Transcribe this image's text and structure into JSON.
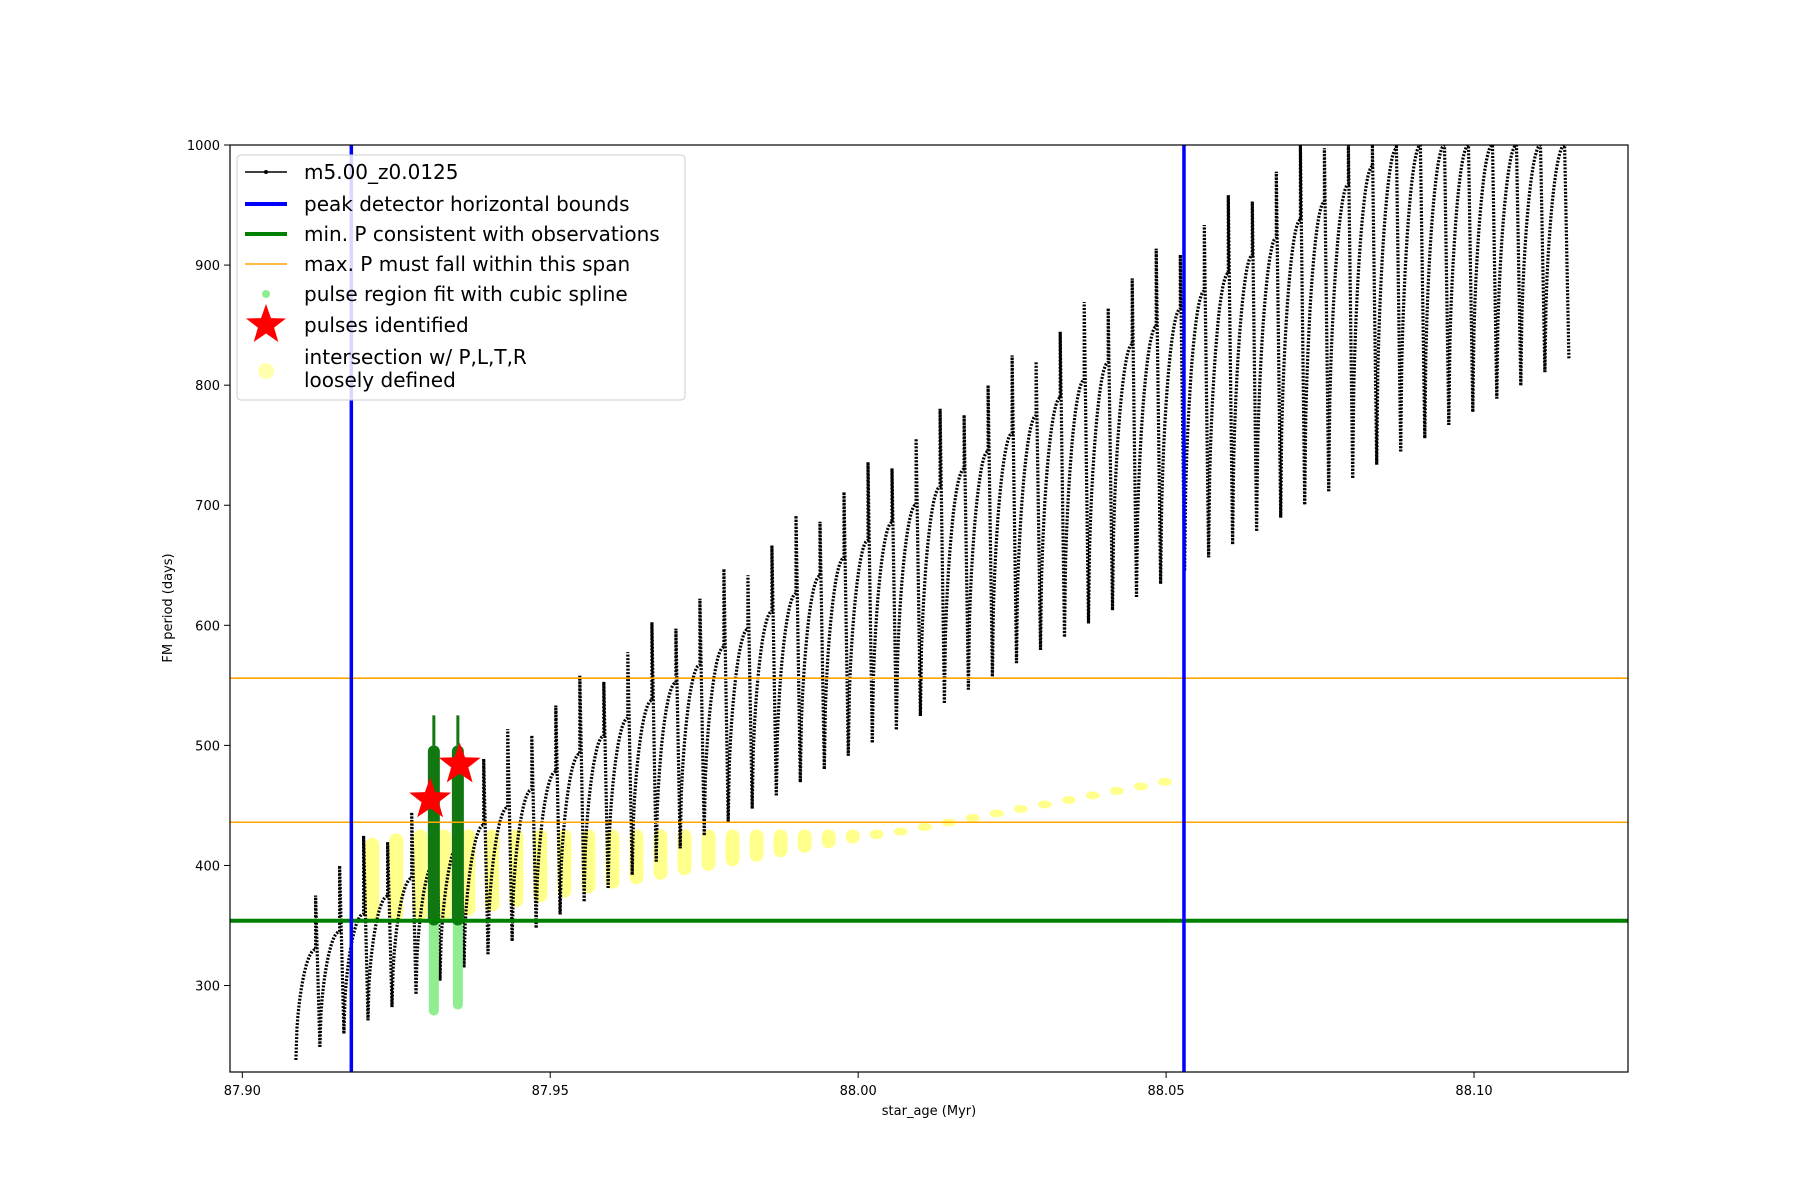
{
  "chart_data": {
    "type": "line",
    "xlabel": "star_age (Myr)",
    "ylabel": "FM period (days)",
    "xlim": [
      87.898,
      88.125
    ],
    "ylim": [
      228,
      1000
    ],
    "xticks": [
      {
        "value": 87.9,
        "label": "87.90"
      },
      {
        "value": 87.95,
        "label": "87.95"
      },
      {
        "value": 88.0,
        "label": "88.00"
      },
      {
        "value": 88.05,
        "label": "88.05"
      },
      {
        "value": 88.1,
        "label": "88.10"
      }
    ],
    "yticks": [
      {
        "value": 300,
        "label": "300"
      },
      {
        "value": 400,
        "label": "400"
      },
      {
        "value": 500,
        "label": "500"
      },
      {
        "value": 600,
        "label": "600"
      },
      {
        "value": 700,
        "label": "700"
      },
      {
        "value": 800,
        "label": "800"
      },
      {
        "value": 900,
        "label": "900"
      },
      {
        "value": 1000,
        "label": "1000"
      }
    ],
    "grid": false,
    "legend_position": "upper-left",
    "legend": [
      {
        "label": "m5.00_z0.0125",
        "marker": "line-dot",
        "color": "#000000"
      },
      {
        "label": "peak detector horizontal bounds",
        "marker": "line-thick",
        "color": "#0000ff"
      },
      {
        "label": "min. P consistent with observations",
        "marker": "line-thick",
        "color": "#008000"
      },
      {
        "label": "max. P must fall within this span",
        "marker": "line-thin",
        "color": "#ffa500"
      },
      {
        "label": "pulse region fit with cubic spline",
        "marker": "dot",
        "color": "#90ee90"
      },
      {
        "label": "pulses identified",
        "marker": "star",
        "color": "#ff0000"
      },
      {
        "label": "intersection w/ P,L,T,R",
        "label2": "loosely defined",
        "marker": "circle",
        "color": "#ffff99"
      }
    ],
    "series": [
      {
        "name": "m5.00_z0.0125",
        "color": "#000000",
        "pulse_start_x": 87.9087,
        "pulse_spacing": 0.0039,
        "pulse_count": 53,
        "pulse_min_start": 238,
        "pulse_min_slope": 2640,
        "pulse_max_start": 330,
        "pulse_max_slope": 3800,
        "pulse_cap": 1000
      }
    ],
    "vertical_lines": [
      {
        "x": 87.9177,
        "color": "#0000ff",
        "label": "peak detector horizontal bounds"
      },
      {
        "x": 88.0529,
        "color": "#0000ff",
        "label": "peak detector horizontal bounds"
      }
    ],
    "horizontal_lines": [
      {
        "y": 354,
        "color": "#008000",
        "label": "min. P consistent with observations"
      },
      {
        "y": 556,
        "color": "#ffa500",
        "label": "max. P must fall within this span"
      },
      {
        "y": 436,
        "color": "#ffa500",
        "label": "max. P must fall within this span"
      }
    ],
    "spline_regions": [
      {
        "x": 87.9311,
        "ymin": 275,
        "ymax": 500
      },
      {
        "x": 87.935,
        "ymin": 280,
        "ymax": 500
      }
    ],
    "pulses_identified": [
      {
        "x": 87.9305,
        "y": 455
      },
      {
        "x": 87.9353,
        "y": 484
      }
    ],
    "intersection_region": {
      "y_low": 354,
      "y_high_start": 360,
      "y_high_end": 490,
      "x_start": 87.918,
      "x_end": 88.053
    }
  }
}
